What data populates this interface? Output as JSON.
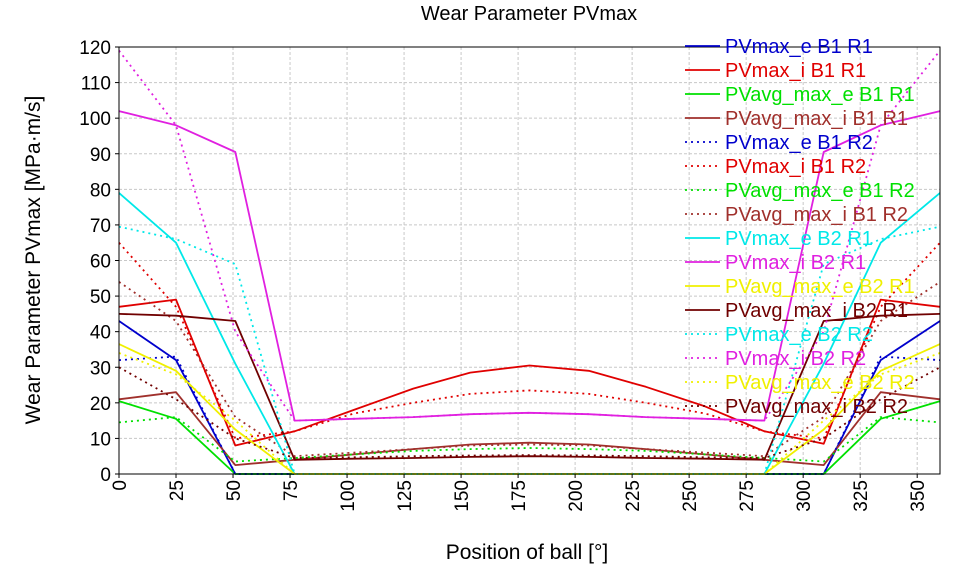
{
  "chart_data": {
    "type": "line",
    "title": "Wear Parameter PVmax",
    "xlabel": "Position of ball [°]",
    "ylabel": "Wear Parameter PVmax [MPa·m/s]",
    "xlim": [
      0,
      360
    ],
    "ylim": [
      0,
      120
    ],
    "xticks": [
      "0",
      "25",
      "50",
      "75",
      "100",
      "125",
      "150",
      "175",
      "200",
      "225",
      "250",
      "275",
      "300",
      "325",
      "350"
    ],
    "yticks": [
      "0",
      "10",
      "20",
      "30",
      "40",
      "50",
      "60",
      "70",
      "80",
      "90",
      "100",
      "110",
      "120"
    ],
    "grid": true,
    "legend_position": "top-right",
    "x": [
      0,
      25,
      51,
      77,
      103,
      129,
      154,
      180,
      206,
      231,
      257,
      283,
      309,
      334,
      360
    ],
    "series": [
      {
        "name": "PVmax_e B1 R1",
        "color": "#0000cc",
        "dash": "solid",
        "values": [
          43,
          32,
          0,
          0,
          0,
          0,
          0,
          0,
          0,
          0,
          0,
          0,
          0,
          32,
          43
        ]
      },
      {
        "name": "PVmax_i B1 R1",
        "color": "#e00000",
        "dash": "solid",
        "values": [
          47,
          49,
          8,
          12,
          18,
          24,
          28.5,
          30.5,
          29,
          24.5,
          19,
          12,
          8.5,
          49,
          47
        ]
      },
      {
        "name": "PVavg_max_e B1 R1",
        "color": "#00e000",
        "dash": "solid",
        "values": [
          20.5,
          15.5,
          0,
          0,
          0,
          0,
          0,
          0,
          0,
          0,
          0,
          0,
          0,
          15.5,
          20.5
        ]
      },
      {
        "name": "PVavg_max_i B1 R1",
        "color": "#a0302c",
        "dash": "solid",
        "values": [
          21,
          23,
          2.5,
          4,
          5.5,
          7,
          8.3,
          8.8,
          8.3,
          7,
          5.5,
          4,
          2.5,
          23,
          21
        ]
      },
      {
        "name": "PVmax_e B1 R2",
        "color": "#0000cc",
        "dash": "dot",
        "values": [
          32,
          33,
          0,
          0,
          0,
          0,
          0,
          0,
          0,
          0,
          0,
          0,
          0,
          33,
          32
        ]
      },
      {
        "name": "PVmax_i B1 R2",
        "color": "#e00000",
        "dash": "dot",
        "values": [
          65,
          47,
          10,
          12,
          17,
          20,
          22.5,
          23.5,
          22.5,
          20,
          17,
          12,
          10,
          47,
          65
        ]
      },
      {
        "name": "PVavg_max_e B1 R2",
        "color": "#00e000",
        "dash": "dot",
        "values": [
          14.5,
          16,
          3.5,
          4.5,
          5.5,
          6.5,
          7,
          7.3,
          7,
          6.5,
          5.5,
          4.5,
          3.5,
          16,
          14.5
        ]
      },
      {
        "name": "PVavg_max_i B1 R2",
        "color": "#a0302c",
        "dash": "dot",
        "values": [
          54,
          43,
          16,
          5,
          6,
          7,
          8,
          8.3,
          8,
          7,
          6,
          5,
          16,
          43,
          54
        ]
      },
      {
        "name": "PVmax_e B2 R1",
        "color": "#00e8e8",
        "dash": "solid",
        "values": [
          79,
          65,
          31,
          0,
          0,
          0,
          0,
          0,
          0,
          0,
          0,
          0,
          31,
          65,
          79
        ]
      },
      {
        "name": "PVmax_i B2 R1",
        "color": "#e020e0",
        "dash": "solid",
        "values": [
          102,
          98,
          90.5,
          15,
          15.5,
          16,
          16.8,
          17.2,
          16.8,
          16,
          15.5,
          15,
          90.5,
          98,
          102
        ]
      },
      {
        "name": "PVavg_max_e B2 R1",
        "color": "#f0f000",
        "dash": "solid",
        "values": [
          36.5,
          29,
          12.5,
          0,
          0,
          0,
          0,
          0,
          0,
          0,
          0,
          0,
          12.5,
          29,
          36.5
        ]
      },
      {
        "name": "PVavg_max_i B2 R1",
        "color": "#700000",
        "dash": "solid",
        "values": [
          45,
          44.5,
          43,
          4,
          4.3,
          4.5,
          4.8,
          5,
          4.8,
          4.5,
          4.3,
          4,
          43,
          44.5,
          45
        ]
      },
      {
        "name": "PVmax_e B2 R2",
        "color": "#00e8e8",
        "dash": "dot",
        "values": [
          69.5,
          66,
          59,
          0,
          0,
          0,
          0,
          0,
          0,
          0,
          0,
          0,
          59,
          66,
          69.5
        ]
      },
      {
        "name": "PVmax_i B2 R2",
        "color": "#e020e0",
        "dash": "dot",
        "values": [
          119,
          98,
          40,
          15,
          15.5,
          16,
          16.8,
          17.2,
          16.8,
          16,
          15.5,
          15,
          40,
          98,
          119
        ]
      },
      {
        "name": "PVavg_max_e B2 R2",
        "color": "#f0f000",
        "dash": "dot",
        "values": [
          34,
          28,
          15,
          0,
          0,
          0,
          0,
          0,
          0,
          0,
          0,
          0,
          15,
          28,
          34
        ]
      },
      {
        "name": "PVavg_max_i B2 R2",
        "color": "#700000",
        "dash": "dot",
        "values": [
          30,
          21,
          10,
          4.5,
          4.7,
          5,
          5.2,
          5.3,
          5.2,
          5,
          4.7,
          4.5,
          10,
          21,
          30
        ]
      }
    ]
  }
}
